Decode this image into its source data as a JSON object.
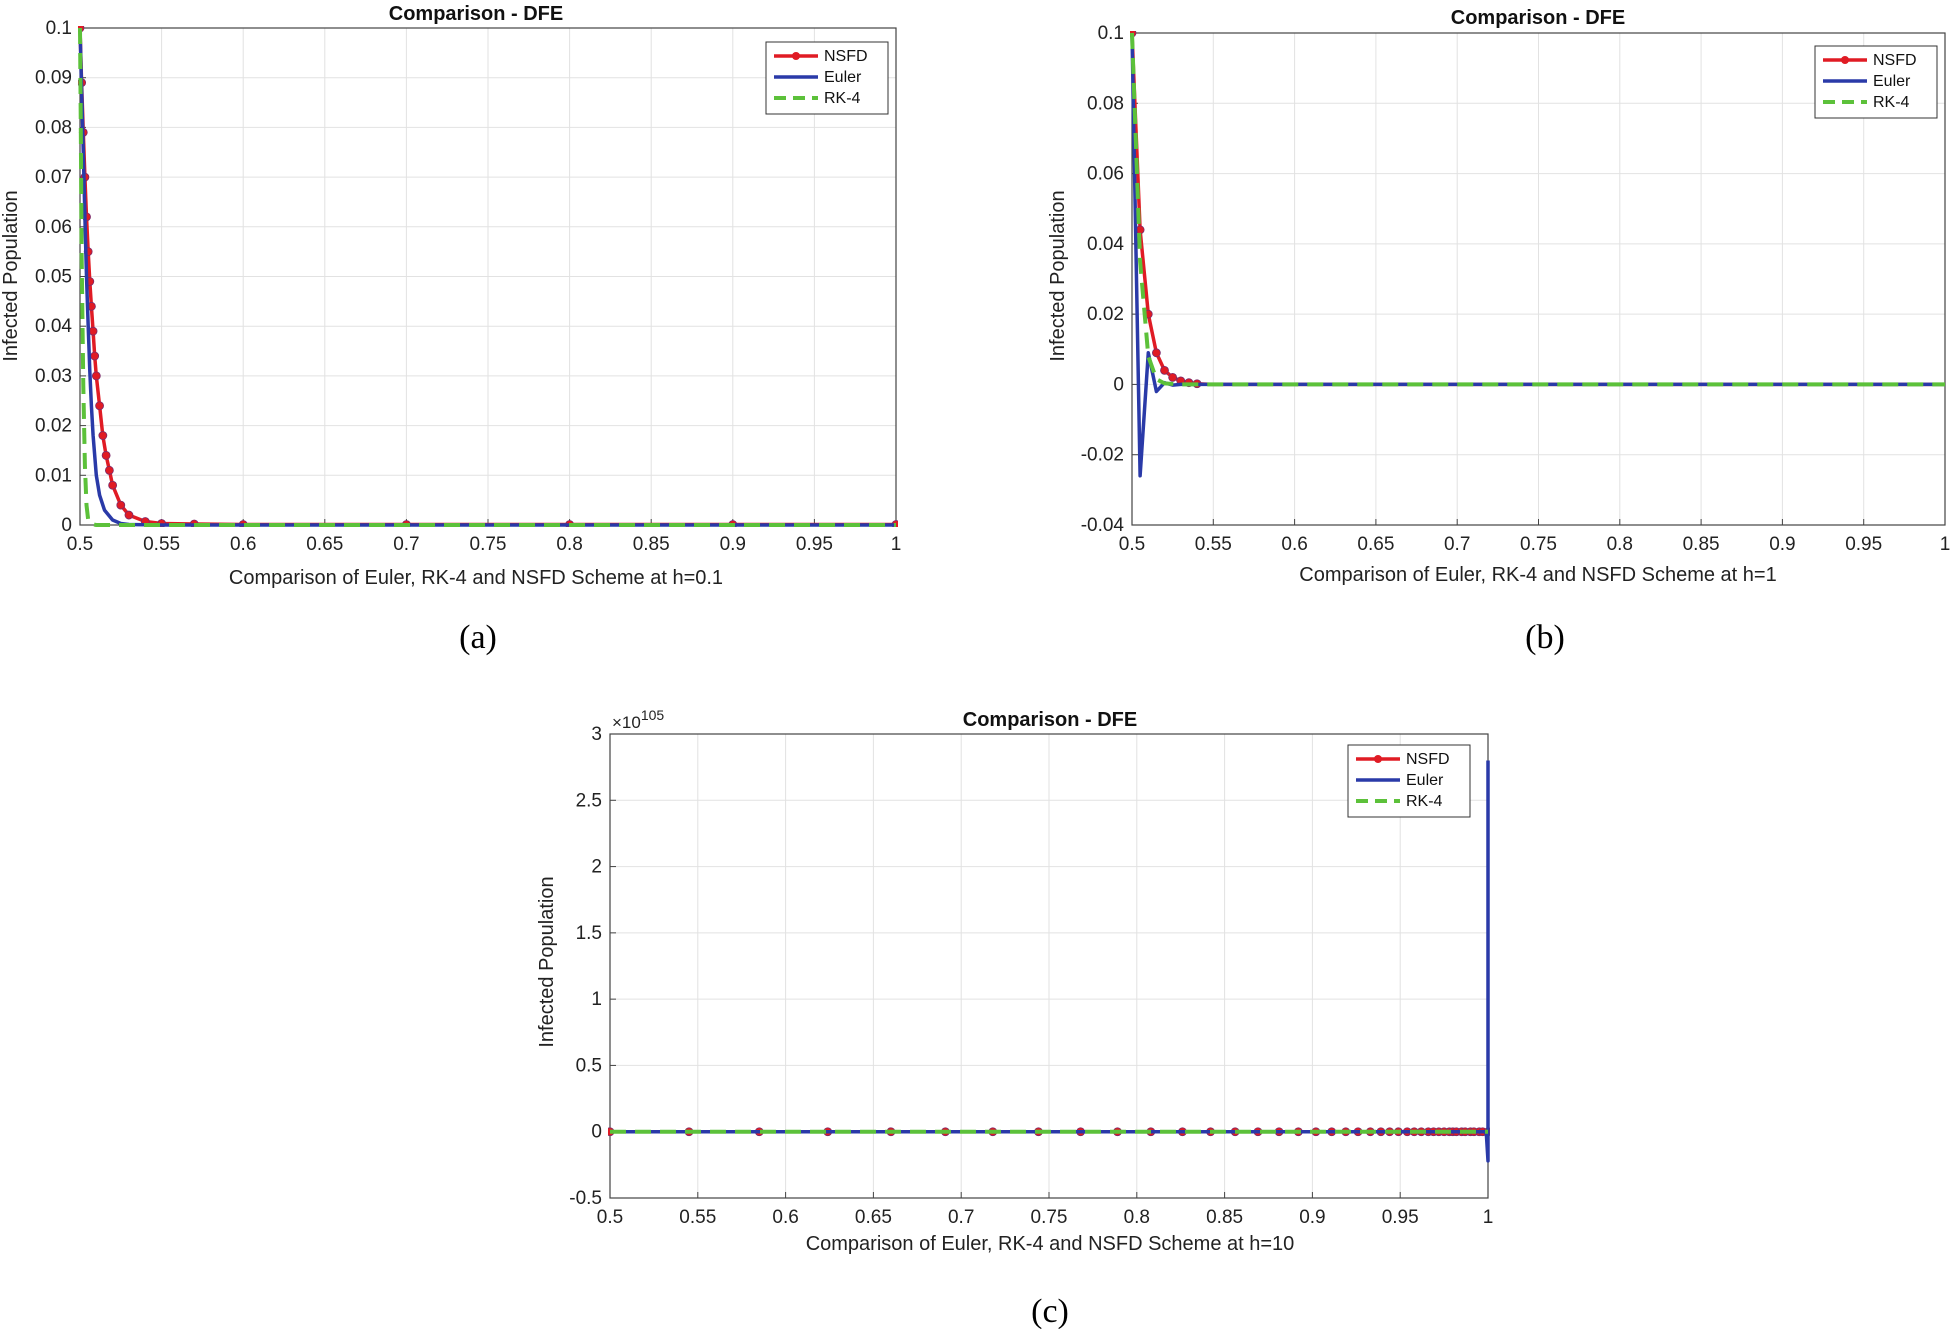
{
  "figure": {
    "captions": [
      "(a)",
      "(b)",
      "(c)"
    ]
  },
  "colors": {
    "NSFD": "#e01b24",
    "Euler": "#2a3aa8",
    "RK-4": "#5cc13a",
    "grid": "#e2e2e2",
    "axes": "#444444"
  },
  "chart_data": [
    {
      "type": "line",
      "title": "Comparison - DFE",
      "xlabel": "Comparison of Euler, RK-4 and NSFD Scheme at h=0.1",
      "ylabel": "Infected Population",
      "xlim": [
        0.5,
        1
      ],
      "ylim": [
        0,
        0.1
      ],
      "xticks": [
        0.5,
        0.55,
        0.6,
        0.65,
        0.7,
        0.75,
        0.8,
        0.85,
        0.9,
        0.95,
        1
      ],
      "xtick_labels": [
        "0.5",
        "0.55",
        "0.6",
        "0.65",
        "0.7",
        "0.75",
        "0.8",
        "0.85",
        "0.9",
        "0.95",
        "1"
      ],
      "yticks": [
        0,
        0.01,
        0.02,
        0.03,
        0.04,
        0.05,
        0.06,
        0.07,
        0.08,
        0.09,
        0.1
      ],
      "ytick_labels": [
        "0",
        "0.01",
        "0.02",
        "0.03",
        "0.04",
        "0.05",
        "0.06",
        "0.07",
        "0.08",
        "0.09",
        "0.1"
      ],
      "exponent_label": "",
      "grid": true,
      "legend_position": "top-right",
      "legend": [
        "NSFD",
        "Euler",
        "RK-4"
      ],
      "series": [
        {
          "name": "NSFD",
          "style": "line-dots",
          "x": [
            0.5,
            0.501,
            0.502,
            0.503,
            0.504,
            0.505,
            0.506,
            0.507,
            0.508,
            0.509,
            0.51,
            0.512,
            0.514,
            0.516,
            0.518,
            0.52,
            0.525,
            0.53,
            0.54,
            0.55,
            0.57,
            0.6,
            0.7,
            0.8,
            0.9,
            1.0
          ],
          "y": [
            0.1,
            0.089,
            0.079,
            0.07,
            0.062,
            0.055,
            0.049,
            0.044,
            0.039,
            0.034,
            0.03,
            0.024,
            0.018,
            0.014,
            0.011,
            0.008,
            0.004,
            0.002,
            0.0007,
            0.0003,
            0.0002,
            0.0001,
            0.0001,
            0.0001,
            0.0001,
            0.0001
          ]
        },
        {
          "name": "Euler",
          "style": "line",
          "x": [
            0.5,
            0.501,
            0.502,
            0.503,
            0.504,
            0.505,
            0.506,
            0.507,
            0.508,
            0.51,
            0.512,
            0.515,
            0.52,
            0.525,
            0.53,
            0.55,
            0.6,
            1.0
          ],
          "y": [
            0.1,
            0.088,
            0.075,
            0.062,
            0.05,
            0.04,
            0.031,
            0.024,
            0.018,
            0.01,
            0.006,
            0.003,
            0.001,
            0.0003,
            0.0001,
            0,
            0,
            0
          ]
        },
        {
          "name": "RK-4",
          "style": "dashed",
          "x": [
            0.5,
            0.5005,
            0.501,
            0.502,
            0.503,
            0.504,
            0.505,
            0.507,
            0.51,
            0.515,
            1.0
          ],
          "y": [
            0.1,
            0.08,
            0.055,
            0.028,
            0.012,
            0.004,
            0.001,
            0.0002,
            0,
            0,
            0
          ]
        }
      ]
    },
    {
      "type": "line",
      "title": "Comparison - DFE",
      "xlabel": "Comparison of Euler, RK-4 and NSFD Scheme at h=1",
      "ylabel": "Infected Population",
      "xlim": [
        0.5,
        1
      ],
      "ylim": [
        -0.04,
        0.1
      ],
      "xticks": [
        0.5,
        0.55,
        0.6,
        0.65,
        0.7,
        0.75,
        0.8,
        0.85,
        0.9,
        0.95,
        1
      ],
      "xtick_labels": [
        "0.5",
        "0.55",
        "0.6",
        "0.65",
        "0.7",
        "0.75",
        "0.8",
        "0.85",
        "0.9",
        "0.95",
        "1"
      ],
      "yticks": [
        -0.04,
        -0.02,
        0,
        0.02,
        0.04,
        0.06,
        0.08,
        0.1
      ],
      "ytick_labels": [
        "-0.04",
        "-0.02",
        "0",
        "0.02",
        "0.04",
        "0.06",
        "0.08",
        "0.1"
      ],
      "exponent_label": "",
      "grid": true,
      "legend_position": "top-right",
      "legend": [
        "NSFD",
        "Euler",
        "RK-4"
      ],
      "series": [
        {
          "name": "NSFD",
          "style": "line-dots",
          "x": [
            0.5,
            0.505,
            0.51,
            0.515,
            0.52,
            0.525,
            0.53,
            0.535,
            0.54,
            0.545,
            0.55,
            0.6,
            0.7,
            0.8,
            0.9,
            1.0
          ],
          "y": [
            0.1,
            0.044,
            0.02,
            0.009,
            0.004,
            0.002,
            0.001,
            0.0005,
            0.0002,
            0.0001,
            0,
            0,
            0,
            0,
            0,
            0
          ],
          "markers_x": [
            0.5,
            0.505,
            0.51,
            0.515,
            0.52,
            0.525,
            0.53,
            0.535,
            0.54
          ]
        },
        {
          "name": "Euler",
          "style": "line",
          "x": [
            0.5,
            0.505,
            0.51,
            0.515,
            0.52,
            0.525,
            0.53,
            0.54,
            0.55,
            0.6,
            1.0
          ],
          "y": [
            0.1,
            -0.026,
            0.009,
            -0.002,
            0.0005,
            -0.0002,
            0,
            0,
            0,
            0,
            0
          ]
        },
        {
          "name": "RK-4",
          "style": "dashed",
          "x": [
            0.5,
            0.505,
            0.51,
            0.515,
            0.52,
            0.53,
            0.54,
            0.55,
            1.0
          ],
          "y": [
            0.1,
            0.035,
            0.008,
            0.0015,
            0.0003,
            0,
            0,
            0,
            0
          ]
        }
      ]
    },
    {
      "type": "line",
      "title": "Comparison - DFE",
      "xlabel": "Comparison of Euler, RK-4 and NSFD Scheme at h=10",
      "ylabel": "Infected Population",
      "xlim": [
        0.5,
        1
      ],
      "ylim": [
        -0.5,
        3
      ],
      "xticks": [
        0.5,
        0.55,
        0.6,
        0.65,
        0.7,
        0.75,
        0.8,
        0.85,
        0.9,
        0.95,
        1
      ],
      "xtick_labels": [
        "0.5",
        "0.55",
        "0.6",
        "0.65",
        "0.7",
        "0.75",
        "0.8",
        "0.85",
        "0.9",
        "0.95",
        "1"
      ],
      "yticks": [
        -0.5,
        0,
        0.5,
        1,
        1.5,
        2,
        2.5,
        3
      ],
      "ytick_labels": [
        "-0.5",
        "0",
        "0.5",
        "1",
        "1.5",
        "2",
        "2.5",
        "3"
      ],
      "exponent_label": "×10",
      "exponent_power": "105",
      "grid": true,
      "legend_position": "top-right",
      "legend": [
        "NSFD",
        "Euler",
        "RK-4"
      ],
      "series": [
        {
          "name": "NSFD",
          "style": "line-dots",
          "x": [
            0.5,
            0.545,
            0.585,
            0.624,
            0.66,
            0.691,
            0.718,
            0.744,
            0.768,
            0.789,
            0.808,
            0.826,
            0.842,
            0.856,
            0.869,
            0.881,
            0.892,
            0.902,
            0.911,
            0.919,
            0.926,
            0.933,
            0.939,
            0.944,
            0.949,
            0.954,
            0.958,
            0.962,
            0.966,
            0.969,
            0.972,
            0.975,
            0.978,
            0.98,
            0.982,
            0.985,
            0.987,
            0.99,
            0.992,
            0.995,
            0.997,
            1.0
          ],
          "y": [
            0,
            0,
            0,
            0,
            0,
            0,
            0,
            0,
            0,
            0,
            0,
            0,
            0,
            0,
            0,
            0,
            0,
            0,
            0,
            0,
            0,
            0,
            0,
            0,
            0,
            0,
            0,
            0,
            0,
            0,
            0,
            0,
            0,
            0,
            0,
            0,
            0,
            0,
            0,
            0,
            0,
            0
          ]
        },
        {
          "name": "Euler",
          "style": "line",
          "x": [
            0.5,
            0.999,
            1.0,
            1.0
          ],
          "y": [
            0,
            0,
            -0.22,
            2.8
          ]
        },
        {
          "name": "RK-4",
          "style": "dashed",
          "x": [
            0.5,
            1.0
          ],
          "y": [
            0,
            0
          ]
        }
      ]
    }
  ]
}
